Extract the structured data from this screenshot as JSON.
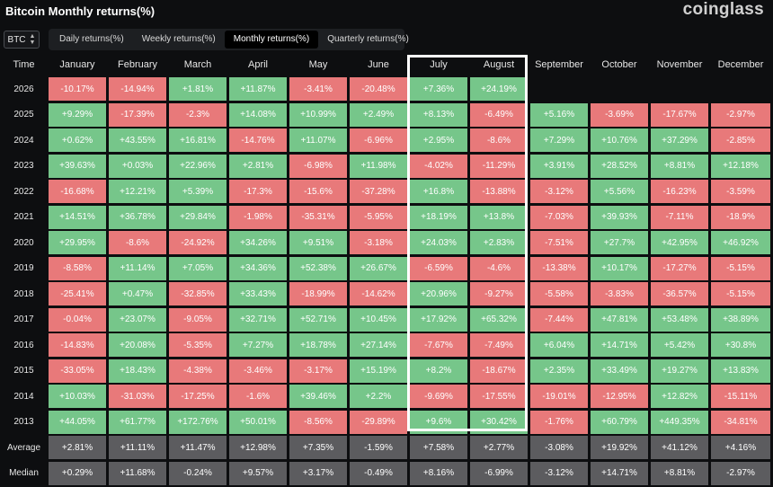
{
  "title": "Bitcoin Monthly returns(%)",
  "logo": "coinglass",
  "coin_select": "BTC",
  "tabs": [
    {
      "label": "Daily returns(%)",
      "active": false
    },
    {
      "label": "Weekly returns(%)",
      "active": false
    },
    {
      "label": "Monthly returns(%)",
      "active": true
    },
    {
      "label": "Quarterly returns(%)",
      "active": false
    }
  ],
  "header": [
    "Time",
    "January",
    "February",
    "March",
    "April",
    "May",
    "June",
    "July",
    "August",
    "September",
    "October",
    "November",
    "December"
  ],
  "rows": [
    {
      "year": "2026",
      "values": [
        "-10.17%",
        "-14.94%",
        "+1.81%",
        "+11.87%",
        "-3.41%",
        "-20.48%",
        "+7.36%",
        "+24.19%",
        "",
        "",
        "",
        ""
      ]
    },
    {
      "year": "2025",
      "values": [
        "+9.29%",
        "-17.39%",
        "-2.3%",
        "+14.08%",
        "+10.99%",
        "+2.49%",
        "+8.13%",
        "-6.49%",
        "+5.16%",
        "-3.69%",
        "-17.67%",
        "-2.97%"
      ]
    },
    {
      "year": "2024",
      "values": [
        "+0.62%",
        "+43.55%",
        "+16.81%",
        "-14.76%",
        "+11.07%",
        "-6.96%",
        "+2.95%",
        "-8.6%",
        "+7.29%",
        "+10.76%",
        "+37.29%",
        "-2.85%"
      ]
    },
    {
      "year": "2023",
      "values": [
        "+39.63%",
        "+0.03%",
        "+22.96%",
        "+2.81%",
        "-6.98%",
        "+11.98%",
        "-4.02%",
        "-11.29%",
        "+3.91%",
        "+28.52%",
        "+8.81%",
        "+12.18%"
      ]
    },
    {
      "year": "2022",
      "values": [
        "-16.68%",
        "+12.21%",
        "+5.39%",
        "-17.3%",
        "-15.6%",
        "-37.28%",
        "+16.8%",
        "-13.88%",
        "-3.12%",
        "+5.56%",
        "-16.23%",
        "-3.59%"
      ]
    },
    {
      "year": "2021",
      "values": [
        "+14.51%",
        "+36.78%",
        "+29.84%",
        "-1.98%",
        "-35.31%",
        "-5.95%",
        "+18.19%",
        "+13.8%",
        "-7.03%",
        "+39.93%",
        "-7.11%",
        "-18.9%"
      ]
    },
    {
      "year": "2020",
      "values": [
        "+29.95%",
        "-8.6%",
        "-24.92%",
        "+34.26%",
        "+9.51%",
        "-3.18%",
        "+24.03%",
        "+2.83%",
        "-7.51%",
        "+27.7%",
        "+42.95%",
        "+46.92%"
      ]
    },
    {
      "year": "2019",
      "values": [
        "-8.58%",
        "+11.14%",
        "+7.05%",
        "+34.36%",
        "+52.38%",
        "+26.67%",
        "-6.59%",
        "-4.6%",
        "-13.38%",
        "+10.17%",
        "-17.27%",
        "-5.15%"
      ]
    },
    {
      "year": "2018",
      "values": [
        "-25.41%",
        "+0.47%",
        "-32.85%",
        "+33.43%",
        "-18.99%",
        "-14.62%",
        "+20.96%",
        "-9.27%",
        "-5.58%",
        "-3.83%",
        "-36.57%",
        "-5.15%"
      ]
    },
    {
      "year": "2017",
      "values": [
        "-0.04%",
        "+23.07%",
        "-9.05%",
        "+32.71%",
        "+52.71%",
        "+10.45%",
        "+17.92%",
        "+65.32%",
        "-7.44%",
        "+47.81%",
        "+53.48%",
        "+38.89%"
      ]
    },
    {
      "year": "2016",
      "values": [
        "-14.83%",
        "+20.08%",
        "-5.35%",
        "+7.27%",
        "+18.78%",
        "+27.14%",
        "-7.67%",
        "-7.49%",
        "+6.04%",
        "+14.71%",
        "+5.42%",
        "+30.8%"
      ]
    },
    {
      "year": "2015",
      "values": [
        "-33.05%",
        "+18.43%",
        "-4.38%",
        "-3.46%",
        "-3.17%",
        "+15.19%",
        "+8.2%",
        "-18.67%",
        "+2.35%",
        "+33.49%",
        "+19.27%",
        "+13.83%"
      ]
    },
    {
      "year": "2014",
      "values": [
        "+10.03%",
        "-31.03%",
        "-17.25%",
        "-1.6%",
        "+39.46%",
        "+2.2%",
        "-9.69%",
        "-17.55%",
        "-19.01%",
        "-12.95%",
        "+12.82%",
        "-15.11%"
      ]
    },
    {
      "year": "2013",
      "values": [
        "+44.05%",
        "+61.77%",
        "+172.76%",
        "+50.01%",
        "-8.56%",
        "-29.89%",
        "+9.6%",
        "+30.42%",
        "-1.76%",
        "+60.79%",
        "+449.35%",
        "-34.81%"
      ]
    }
  ],
  "summary": [
    {
      "label": "Average",
      "values": [
        "+2.81%",
        "+11.11%",
        "+11.47%",
        "+12.98%",
        "+7.35%",
        "-1.59%",
        "+7.58%",
        "+2.77%",
        "-3.08%",
        "+19.92%",
        "+41.12%",
        "+4.16%"
      ]
    },
    {
      "label": "Median",
      "values": [
        "+0.29%",
        "+11.68%",
        "-0.24%",
        "+9.57%",
        "+3.17%",
        "-0.49%",
        "+8.16%",
        "-6.99%",
        "-3.12%",
        "+14.71%",
        "+8.81%",
        "-2.97%"
      ]
    }
  ],
  "colors": {
    "positive": "#76c68a",
    "negative": "#e8797a",
    "summary": "#5c5c5f",
    "background": "#0d0e10"
  }
}
